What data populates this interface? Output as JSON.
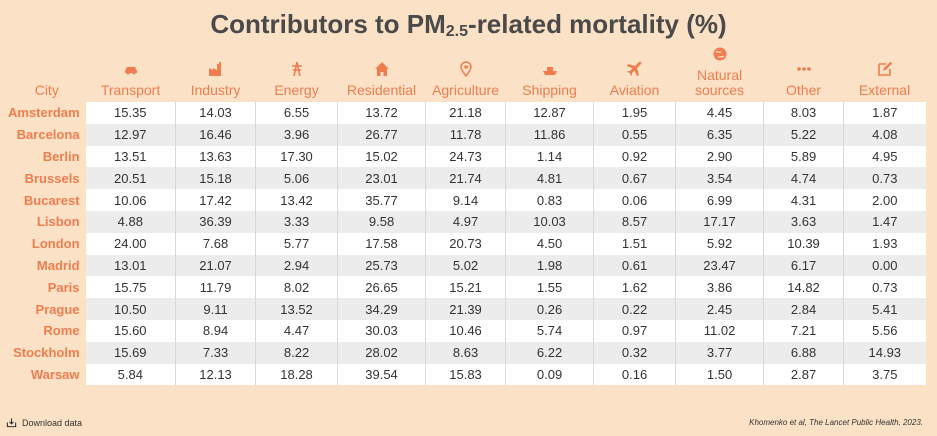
{
  "title_main": "Contributors to PM",
  "title_sub": "2.5",
  "title_rest": "-related mortality (%)",
  "city_header": "City",
  "columns": [
    {
      "label": "Transport",
      "icon": "car-icon"
    },
    {
      "label": "Industry",
      "icon": "factory-icon"
    },
    {
      "label": "Energy",
      "icon": "power-tower-icon"
    },
    {
      "label": "Residential",
      "icon": "house-icon"
    },
    {
      "label": "Agriculture",
      "icon": "map-pin-icon"
    },
    {
      "label": "Shipping",
      "icon": "ship-icon"
    },
    {
      "label": "Aviation",
      "icon": "airplane-icon"
    },
    {
      "label": "Natural sources",
      "icon": "globe-icon"
    },
    {
      "label": "Other",
      "icon": "dots-icon"
    },
    {
      "label": "External",
      "icon": "edit-icon"
    }
  ],
  "chart_data": {
    "type": "table",
    "title": "Contributors to PM2.5-related mortality (%)",
    "columns": [
      "City",
      "Transport",
      "Industry",
      "Energy",
      "Residential",
      "Agriculture",
      "Shipping",
      "Aviation",
      "Natural sources",
      "Other",
      "External"
    ],
    "rows": [
      [
        "Amsterdam",
        "15.35",
        "14.03",
        "6.55",
        "13.72",
        "21.18",
        "12.87",
        "1.95",
        "4.45",
        "8.03",
        "1.87"
      ],
      [
        "Barcelona",
        "12.97",
        "16.46",
        "3.96",
        "26.77",
        "11.78",
        "11.86",
        "0.55",
        "6.35",
        "5.22",
        "4.08"
      ],
      [
        "Berlin",
        "13.51",
        "13.63",
        "17.30",
        "15.02",
        "24.73",
        "1.14",
        "0.92",
        "2.90",
        "5.89",
        "4.95"
      ],
      [
        "Brussels",
        "20.51",
        "15.18",
        "5.06",
        "23.01",
        "21.74",
        "4.81",
        "0.67",
        "3.54",
        "4.74",
        "0.73"
      ],
      [
        "Bucarest",
        "10.06",
        "17.42",
        "13.42",
        "35.77",
        "9.14",
        "0.83",
        "0.06",
        "6.99",
        "4.31",
        "2.00"
      ],
      [
        "Lisbon",
        "4.88",
        "36.39",
        "3.33",
        "9.58",
        "4.97",
        "10.03",
        "8.57",
        "17.17",
        "3.63",
        "1.47"
      ],
      [
        "London",
        "24.00",
        "7.68",
        "5.77",
        "17.58",
        "20.73",
        "4.50",
        "1.51",
        "5.92",
        "10.39",
        "1.93"
      ],
      [
        "Madrid",
        "13.01",
        "21.07",
        "2.94",
        "25.73",
        "5.02",
        "1.98",
        "0.61",
        "23.47",
        "6.17",
        "0.00"
      ],
      [
        "Paris",
        "15.75",
        "11.79",
        "8.02",
        "26.65",
        "15.21",
        "1.55",
        "1.62",
        "3.86",
        "14.82",
        "0.73"
      ],
      [
        "Prague",
        "10.50",
        "9.11",
        "13.52",
        "34.29",
        "21.39",
        "0.26",
        "0.22",
        "2.45",
        "2.84",
        "5.41"
      ],
      [
        "Rome",
        "15.60",
        "8.94",
        "4.47",
        "30.03",
        "10.46",
        "5.74",
        "0.97",
        "11.02",
        "7.21",
        "5.56"
      ],
      [
        "Stockholm",
        "15.69",
        "7.33",
        "8.22",
        "28.02",
        "8.63",
        "6.22",
        "0.32",
        "3.77",
        "6.88",
        "14.93"
      ],
      [
        "Warsaw",
        "5.84",
        "12.13",
        "18.28",
        "39.54",
        "15.83",
        "0.09",
        "0.16",
        "1.50",
        "2.87",
        "3.75"
      ]
    ]
  },
  "footer": {
    "download": "Download data",
    "source": "Khomenko et al, The Lancet Public Health, 2023."
  },
  "colors": {
    "accent": "#ef7d4f",
    "background": "#fbe1c5",
    "title": "#4a4a4a"
  }
}
